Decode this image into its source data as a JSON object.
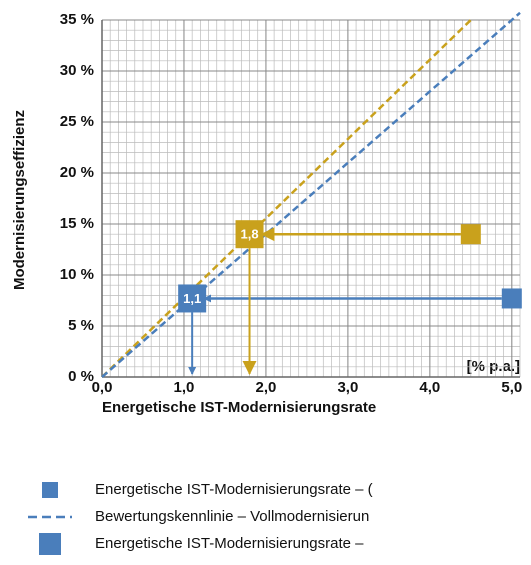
{
  "chart_data": {
    "type": "line",
    "x_label": "Energetische IST-Modernisierungsrate",
    "y_label": "Modernisierungseffizienz",
    "unit_label": "[% p.a.]",
    "xlim": [
      0,
      5.1
    ],
    "ylim": [
      0,
      35
    ],
    "xticks": [
      {
        "value": 0,
        "label": "0,0"
      },
      {
        "value": 1,
        "label": "1,0"
      },
      {
        "value": 2,
        "label": "2,0"
      },
      {
        "value": 3,
        "label": "3,0"
      },
      {
        "value": 4,
        "label": "4,0"
      },
      {
        "value": 5,
        "label": "5,0"
      }
    ],
    "yticks": [
      {
        "value": 0,
        "label": "0 %"
      },
      {
        "value": 5,
        "label": "5 %"
      },
      {
        "value": 10,
        "label": "10 %"
      },
      {
        "value": 15,
        "label": "15 %"
      },
      {
        "value": 20,
        "label": "20 %"
      },
      {
        "value": 25,
        "label": "25 %"
      },
      {
        "value": 30,
        "label": "30 %"
      },
      {
        "value": 35,
        "label": "35 %"
      }
    ],
    "grid": true,
    "series": [
      {
        "color": "#c9a11c",
        "x": [
          0,
          4.5
        ],
        "values": [
          0,
          35
        ]
      },
      {
        "color": "#4a7ebb",
        "x": [
          0,
          5.1
        ],
        "values": [
          0,
          35.7
        ]
      }
    ],
    "points": [
      {
        "x": 5.0,
        "y": 7.7,
        "target_x": 1.1,
        "label": "1,1",
        "color": "#4a7ebb"
      },
      {
        "x": 4.5,
        "y": 14,
        "target_x": 1.8,
        "label": "1,8",
        "color": "#c9a11c"
      }
    ],
    "legend": [
      {
        "label": "Energetische IST-Modernisierungsrate – (",
        "marker": "small-square",
        "color": "#4a7ebb"
      },
      {
        "label": "Bewertungskennlinie – Vollmodernisierun",
        "marker": "dash",
        "color": "#4a7ebb"
      },
      {
        "label": "Energetische IST-Modernisierungsrate –",
        "marker": "square",
        "color": "#4a7ebb"
      }
    ]
  }
}
